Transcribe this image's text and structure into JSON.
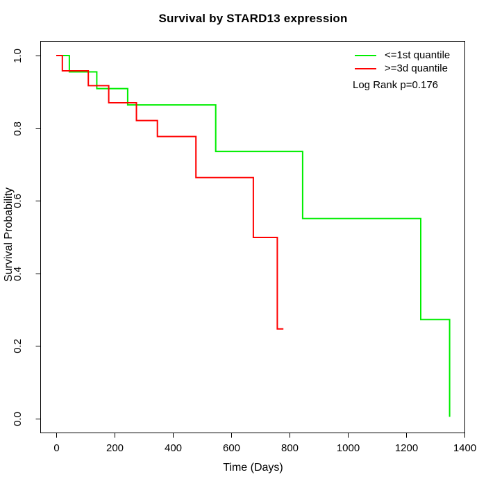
{
  "figure": {
    "background": "#ffffff"
  },
  "chart_data": {
    "type": "line",
    "subtype": "kaplan_meier_step",
    "title": "Survival by STARD13 expression",
    "xlabel": "Time (Days)",
    "ylabel": "Survival Probability",
    "xlim": [
      0,
      1400
    ],
    "ylim": [
      0,
      1
    ],
    "x_ticks": [
      0,
      200,
      400,
      600,
      800,
      1000,
      1200,
      1400
    ],
    "x_tick_labels": [
      "0",
      "200",
      "400",
      "600",
      "800",
      "1000",
      "1200",
      "1400"
    ],
    "y_ticks": [
      0,
      0.2,
      0.4,
      0.6,
      0.8,
      1.0
    ],
    "y_tick_labels": [
      "0.0",
      "0.2",
      "0.4",
      "0.6",
      "0.8",
      "1.0"
    ],
    "grid": false,
    "axis_color": "#000000",
    "line_width": 2,
    "legend_position": "top-right-inside",
    "annotation": "Log Rank p=0.176",
    "series": [
      {
        "name": "<=1st quantile",
        "color": "#00ee00",
        "steps_time_survival": [
          [
            0,
            1.0
          ],
          [
            45,
            0.955
          ],
          [
            139,
            0.909
          ],
          [
            245,
            0.864
          ],
          [
            547,
            0.736
          ],
          [
            845,
            0.551
          ],
          [
            1250,
            0.273
          ],
          [
            1349,
            0.005
          ]
        ],
        "end_time": 1349
      },
      {
        "name": ">=3d quantile",
        "color": "#ff0000",
        "steps_time_survival": [
          [
            0,
            1.0
          ],
          [
            21,
            0.958
          ],
          [
            110,
            0.917
          ],
          [
            180,
            0.87
          ],
          [
            275,
            0.821
          ],
          [
            347,
            0.777
          ],
          [
            479,
            0.664
          ],
          [
            676,
            0.499
          ],
          [
            758,
            0.247
          ]
        ],
        "end_time": 779
      }
    ]
  }
}
